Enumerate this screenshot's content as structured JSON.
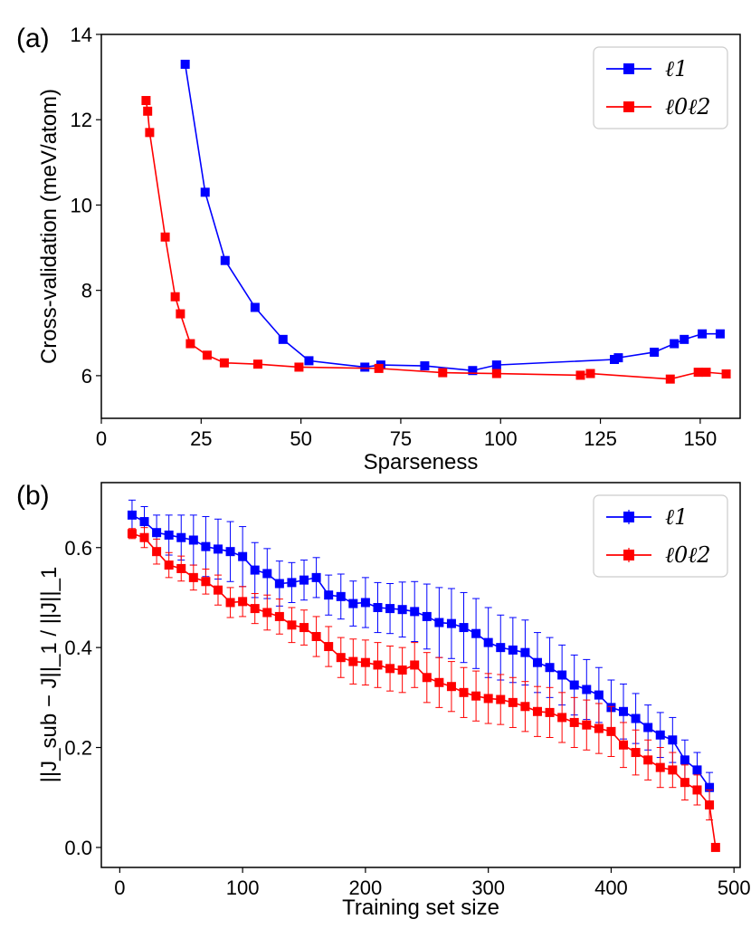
{
  "chart_data": [
    {
      "panel_label": "(a)",
      "type": "line",
      "xlabel": "Sparseness",
      "ylabel": "Cross-validation (meV/atom)",
      "xlim": [
        0,
        160
      ],
      "ylim": [
        5,
        14
      ],
      "xticks": [
        "0",
        "25",
        "50",
        "75",
        "100",
        "125",
        "150"
      ],
      "yticks": [
        "6",
        "8",
        "10",
        "12",
        "14"
      ],
      "legend_position": "top-right",
      "series": [
        {
          "name": "ℓ1",
          "color": "#0000ff",
          "x": [
            21,
            26,
            31,
            38.5,
            45.5,
            52,
            66,
            70,
            81,
            93,
            99,
            128.5,
            129.5,
            138.5,
            143.5,
            146,
            150.5,
            155
          ],
          "y": [
            13.3,
            10.3,
            8.7,
            7.6,
            6.85,
            6.35,
            6.2,
            6.25,
            6.23,
            6.12,
            6.25,
            6.38,
            6.42,
            6.55,
            6.75,
            6.85,
            6.98,
            6.98
          ]
        },
        {
          "name": "ℓ0ℓ2",
          "color": "#ff0000",
          "x": [
            11.2,
            11.6,
            12.1,
            16,
            18.5,
            19.8,
            22.3,
            26.5,
            30.8,
            39.2,
            49.5,
            69.5,
            85.5,
            99,
            120,
            122.5,
            142.5,
            149.5,
            151.5,
            156.5
          ],
          "y": [
            12.45,
            12.2,
            11.7,
            9.25,
            7.85,
            7.45,
            6.75,
            6.48,
            6.3,
            6.27,
            6.2,
            6.17,
            6.07,
            6.05,
            6.01,
            6.05,
            5.92,
            6.08,
            6.08,
            6.04
          ]
        }
      ]
    },
    {
      "panel_label": "(b)",
      "type": "line",
      "xlabel": "Training set size",
      "ylabel": "||J_sub − J||_1 / ||J||_1",
      "xlim": [
        -15,
        505
      ],
      "ylim": [
        -0.04,
        0.73
      ],
      "xticks": [
        "0",
        "100",
        "200",
        "300",
        "400",
        "500"
      ],
      "yticks": [
        "0.0",
        "0.2",
        "0.4",
        "0.6"
      ],
      "legend_position": "top-right",
      "series": [
        {
          "name": "ℓ1",
          "color": "#0000ff",
          "x": [
            10,
            20,
            30,
            40,
            50,
            60,
            70,
            80,
            90,
            100,
            110,
            120,
            130,
            140,
            150,
            160,
            170,
            180,
            190,
            200,
            210,
            220,
            230,
            240,
            250,
            260,
            270,
            280,
            290,
            300,
            310,
            320,
            330,
            340,
            350,
            360,
            370,
            380,
            390,
            400,
            410,
            420,
            430,
            440,
            450,
            460,
            470,
            480
          ],
          "y": [
            0.665,
            0.652,
            0.63,
            0.625,
            0.62,
            0.615,
            0.602,
            0.597,
            0.592,
            0.582,
            0.555,
            0.548,
            0.528,
            0.53,
            0.535,
            0.54,
            0.505,
            0.502,
            0.488,
            0.49,
            0.48,
            0.478,
            0.476,
            0.472,
            0.462,
            0.45,
            0.448,
            0.44,
            0.428,
            0.41,
            0.4,
            0.395,
            0.39,
            0.37,
            0.36,
            0.345,
            0.325,
            0.316,
            0.305,
            0.28,
            0.272,
            0.258,
            0.24,
            0.225,
            0.215,
            0.175,
            0.155,
            0.12
          ],
          "err": [
            0.03,
            0.03,
            0.035,
            0.04,
            0.045,
            0.05,
            0.06,
            0.06,
            0.06,
            0.06,
            0.055,
            0.05,
            0.045,
            0.04,
            0.04,
            0.04,
            0.04,
            0.045,
            0.045,
            0.05,
            0.05,
            0.05,
            0.055,
            0.06,
            0.065,
            0.07,
            0.07,
            0.07,
            0.07,
            0.07,
            0.065,
            0.065,
            0.065,
            0.06,
            0.06,
            0.06,
            0.06,
            0.06,
            0.055,
            0.055,
            0.055,
            0.05,
            0.045,
            0.045,
            0.045,
            0.04,
            0.035,
            0.03
          ]
        },
        {
          "name": "ℓ0ℓ2",
          "color": "#ff0000",
          "x": [
            10,
            20,
            30,
            40,
            50,
            60,
            70,
            80,
            90,
            100,
            110,
            120,
            130,
            140,
            150,
            160,
            170,
            180,
            190,
            200,
            210,
            220,
            230,
            240,
            250,
            260,
            270,
            280,
            290,
            300,
            310,
            320,
            330,
            340,
            350,
            360,
            370,
            380,
            390,
            400,
            410,
            420,
            430,
            440,
            450,
            460,
            470,
            480,
            485
          ],
          "y": [
            0.628,
            0.62,
            0.592,
            0.565,
            0.558,
            0.54,
            0.532,
            0.515,
            0.49,
            0.492,
            0.478,
            0.47,
            0.462,
            0.445,
            0.44,
            0.422,
            0.402,
            0.38,
            0.372,
            0.37,
            0.365,
            0.358,
            0.355,
            0.365,
            0.34,
            0.33,
            0.322,
            0.31,
            0.303,
            0.298,
            0.296,
            0.29,
            0.282,
            0.272,
            0.27,
            0.26,
            0.25,
            0.245,
            0.238,
            0.232,
            0.205,
            0.19,
            0.175,
            0.16,
            0.155,
            0.13,
            0.115,
            0.085,
            0.0
          ],
          "err": [
            0.01,
            0.02,
            0.025,
            0.025,
            0.025,
            0.025,
            0.025,
            0.03,
            0.03,
            0.03,
            0.03,
            0.035,
            0.035,
            0.035,
            0.035,
            0.04,
            0.04,
            0.04,
            0.045,
            0.045,
            0.045,
            0.045,
            0.045,
            0.045,
            0.05,
            0.05,
            0.05,
            0.05,
            0.05,
            0.05,
            0.05,
            0.05,
            0.05,
            0.05,
            0.05,
            0.05,
            0.05,
            0.05,
            0.05,
            0.05,
            0.045,
            0.045,
            0.04,
            0.04,
            0.035,
            0.035,
            0.03,
            0.03,
            0.0
          ]
        }
      ]
    }
  ]
}
